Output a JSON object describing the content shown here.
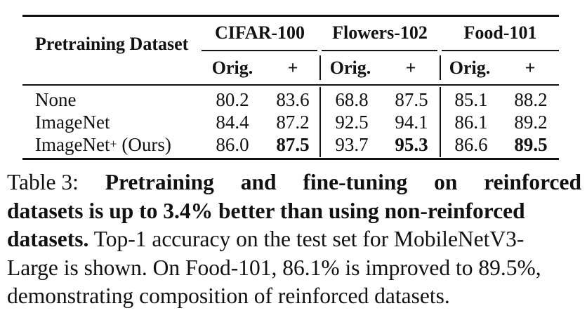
{
  "table": {
    "header_label": "Pretraining Dataset",
    "groups": [
      "CIFAR-100",
      "Flowers-102",
      "Food-101"
    ],
    "subheaders": [
      "Orig.",
      "+",
      "Orig.",
      "+",
      "Orig.",
      "+"
    ],
    "rows": [
      {
        "label": "None",
        "label_sup": "",
        "label_suffix": "",
        "values": [
          "80.2",
          "83.6",
          "68.8",
          "87.5",
          "85.1",
          "88.2"
        ]
      },
      {
        "label": "ImageNet",
        "label_sup": "",
        "label_suffix": "",
        "values": [
          "84.4",
          "87.2",
          "92.5",
          "94.1",
          "86.1",
          "89.2"
        ]
      },
      {
        "label": "ImageNet",
        "label_sup": "+",
        "label_suffix": " (Ours)",
        "values": [
          "86.0",
          "87.5",
          "93.7",
          "95.3",
          "86.6",
          "89.5"
        ]
      }
    ]
  },
  "caption": {
    "l1_a": "Table 3:",
    "l1_b": "Pretraining",
    "l1_c": "and",
    "l1_d": "fine-tuning",
    "l1_e": "on",
    "l1_f": "reinforced",
    "l2_b": "datasets is up to 3.4% better than using non-reinforced",
    "l3_b": "datasets.",
    "l3_r": " Top-1 accuracy on the test set for MobileNetV3-",
    "l4": "Large is shown. On Food-101, 86.1% is improved to 89.5%,",
    "l5": "demonstrating composition of reinforced datasets."
  }
}
